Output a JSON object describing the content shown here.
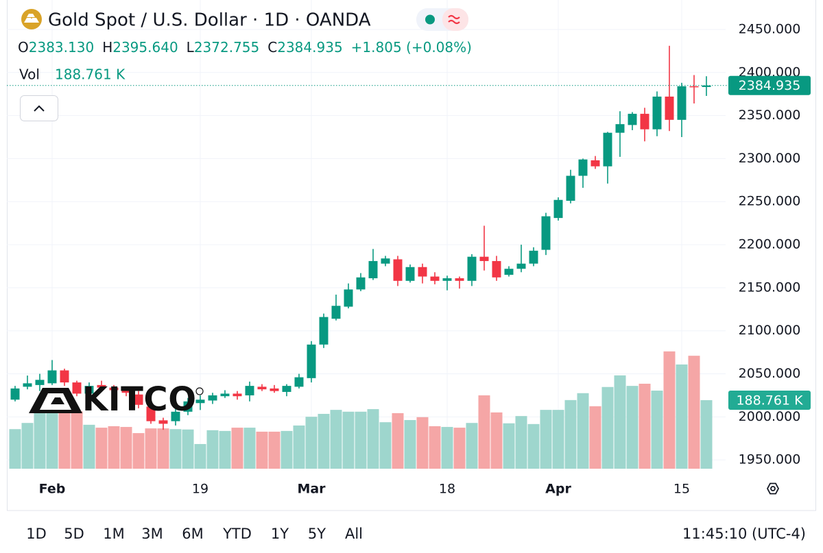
{
  "header": {
    "title": "Gold Spot / U.S. Dollar · 1D · OANDA",
    "ohlc": [
      {
        "key": "O",
        "value": "2383.130"
      },
      {
        "key": "H",
        "value": "2395.640"
      },
      {
        "key": "L",
        "value": "2372.755"
      },
      {
        "key": "C",
        "value": "2384.935"
      }
    ],
    "change": "+1.805 (+0.08%)"
  },
  "watermark": "KITCO",
  "toolbar": {
    "ranges": [
      "1D",
      "5D",
      "1M",
      "3M",
      "6M",
      "YTD",
      "1Y",
      "5Y",
      "All"
    ],
    "time": "11:45:10 (UTC-4)"
  },
  "chart_data": {
    "type": "candlestick",
    "categories": [
      null,
      null,
      null,
      "Feb",
      null,
      null,
      null,
      null,
      null,
      null,
      null,
      null,
      null,
      null,
      null,
      "19",
      null,
      null,
      null,
      null,
      null,
      null,
      null,
      null,
      "Mar",
      null,
      null,
      null,
      null,
      null,
      null,
      null,
      null,
      null,
      null,
      "18",
      null,
      null,
      null,
      null,
      null,
      null,
      null,
      null,
      "Apr",
      null,
      null,
      null,
      null,
      null,
      null,
      null,
      null,
      null,
      "15",
      null,
      null
    ],
    "open": [
      2020,
      2035,
      2037,
      2039,
      2054,
      2040,
      2027,
      2037,
      2034,
      2032,
      2026,
      2012,
      1996,
      1995,
      2006,
      2016,
      2019,
      2024,
      2027,
      2025,
      2035,
      2033,
      2029,
      2035,
      2045,
      2084,
      2114,
      2128,
      2148,
      2161,
      2178,
      2183,
      2158,
      2174,
      2163,
      2158,
      2161,
      2158,
      2186,
      2181,
      2165,
      2172,
      2178,
      2194,
      2231,
      2251,
      2280,
      2298,
      2291,
      2330,
      2339,
      2352,
      2334,
      2372,
      2345,
      2384,
      2383.13
    ],
    "high": [
      2036,
      2048,
      2050,
      2066,
      2056,
      2042,
      2040,
      2042,
      2037,
      2034,
      2030,
      2013,
      1999,
      2010,
      2022,
      2025,
      2028,
      2031,
      2030,
      2041,
      2038,
      2037,
      2038,
      2050,
      2088,
      2120,
      2142,
      2155,
      2167,
      2195,
      2187,
      2187,
      2177,
      2178,
      2168,
      2164,
      2163,
      2189,
      2222,
      2187,
      2175,
      2200,
      2197,
      2237,
      2255,
      2287,
      2300,
      2303,
      2331,
      2355,
      2354,
      2359,
      2378,
      2431,
      2388,
      2397,
      2395.64
    ],
    "low": [
      2018,
      2032,
      2030,
      2037,
      2036,
      2024,
      2022,
      2030,
      2027,
      2024,
      2010,
      1992,
      1985,
      1990,
      2002,
      2008,
      2015,
      2022,
      2020,
      2018,
      2030,
      2028,
      2024,
      2033,
      2040,
      2080,
      2112,
      2126,
      2146,
      2159,
      2175,
      2152,
      2156,
      2155,
      2154,
      2147,
      2149,
      2152,
      2170,
      2158,
      2163,
      2168,
      2175,
      2188,
      2228,
      2248,
      2266,
      2288,
      2271,
      2302,
      2333,
      2320,
      2326,
      2332,
      2325,
      2364,
      2372.755
    ],
    "close": [
      2033,
      2039,
      2043,
      2054,
      2040,
      2027,
      2036,
      2034,
      2031,
      2028,
      2014,
      1995,
      1992,
      2006,
      2018,
      2020,
      2025,
      2027,
      2024,
      2036,
      2032,
      2030,
      2036,
      2046,
      2084,
      2116,
      2129,
      2148,
      2162,
      2181,
      2184,
      2158,
      2174,
      2163,
      2158,
      2161,
      2158,
      2186,
      2181,
      2162,
      2172,
      2178,
      2193,
      2233,
      2252,
      2280,
      2299,
      2291,
      2330,
      2340,
      2352,
      2334,
      2372,
      2345,
      2384,
      2383,
      2384.935
    ],
    "up_color": "#089981",
    "down_color": "#f23645",
    "last_price_label": "2384.935",
    "series": [
      {
        "name": "Vol",
        "axis": "y2",
        "up_color": "#9ed6cd",
        "down_color": "#f5a6a6",
        "values": [
          109,
          126,
          158,
          162,
          162,
          158,
          121,
          113,
          117,
          115,
          98,
          111,
          111,
          109,
          108,
          68,
          106,
          104,
          113,
          113,
          102,
          102,
          104,
          119,
          143,
          151,
          162,
          157,
          157,
          164,
          128,
          153,
          134,
          142,
          117,
          115,
          113,
          126,
          202,
          155,
          125,
          145,
          123,
          162,
          162,
          189,
          208,
          172,
          225,
          257,
          228,
          234,
          215,
          323,
          287,
          311,
          188.761
        ],
        "last_value_label": "188.761 K"
      }
    ],
    "ylim": [
      1939.8,
      2480.2
    ],
    "yticks": [
      {
        "value": 1950,
        "label": "1950.000"
      },
      {
        "value": 2000,
        "label": "2000.000"
      },
      {
        "value": 2050,
        "label": "2050.000"
      },
      {
        "value": 2100,
        "label": "2100.000"
      },
      {
        "value": 2150,
        "label": "2150.000"
      },
      {
        "value": 2200,
        "label": "2200.000"
      },
      {
        "value": 2250,
        "label": "2250.000"
      },
      {
        "value": 2300,
        "label": "2300.000"
      },
      {
        "value": 2350,
        "label": "2350.000"
      },
      {
        "value": 2400,
        "label": "2400.000"
      },
      {
        "value": 2450,
        "label": "2450.000"
      }
    ],
    "y2lim": [
      0,
      1281
    ],
    "grid": true
  }
}
